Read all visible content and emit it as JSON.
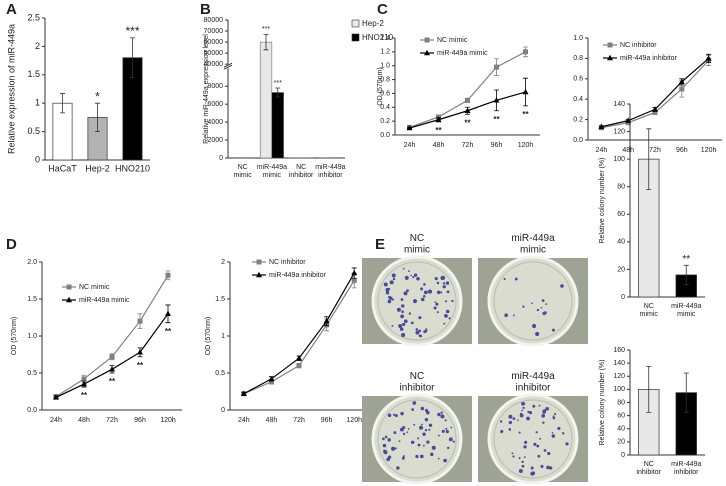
{
  "chart_data": [
    {
      "type": "bar",
      "panel": "A",
      "ylabel": "Relative expression of miR-449a",
      "categories": [
        "HaCaT",
        "Hep-2",
        "HNO210"
      ],
      "values": [
        1.0,
        0.75,
        1.8
      ],
      "errors": [
        0.17,
        0.25,
        0.35
      ],
      "annotations": [
        null,
        "*",
        "***"
      ],
      "colors": [
        "#ffffff",
        "#b3b3b3",
        "#000000"
      ],
      "ylim": [
        0,
        2.5
      ],
      "yticks": [
        0,
        0.5,
        1,
        1.5,
        2,
        2.5
      ]
    },
    {
      "type": "bar",
      "panel": "B",
      "ylabel": "Relative miR-449a expression level",
      "categories": [
        "NC\nmimic",
        "miR-449a\nmimic",
        "NC\ninhibitor",
        "miR-449a\ninhibitor"
      ],
      "series": [
        {
          "name": "Hep-2",
          "color": "#e8e8e8",
          "values": [
            40,
            60000,
            20,
            30
          ],
          "errors": [
            null,
            7000,
            null,
            null
          ],
          "annotations": [
            null,
            "***",
            null,
            null
          ]
        },
        {
          "name": "HNO210",
          "color": "#000000",
          "values": [
            40,
            7300,
            20,
            40
          ],
          "errors": [
            null,
            500,
            null,
            null
          ],
          "annotations": [
            null,
            "***",
            null,
            null
          ]
        }
      ],
      "ylim": [
        0,
        80000
      ],
      "ybreak": [
        10000,
        40000
      ],
      "yticks": [
        0,
        2000,
        4000,
        6000,
        8000,
        40000,
        50000,
        60000,
        70000,
        80000
      ],
      "legend": "right"
    },
    {
      "type": "line",
      "panel": "C",
      "ylabel": "OD (570nm)",
      "categories": [
        "24h",
        "48h",
        "72h",
        "96h",
        "120h"
      ],
      "series": [
        {
          "name": "NC mimic",
          "color": "#808080",
          "marker": "square",
          "values": [
            0.11,
            0.26,
            0.5,
            0.98,
            1.2
          ],
          "errors": [
            0.01,
            0.02,
            0.03,
            0.12,
            0.07
          ]
        },
        {
          "name": "miR-449a mimic",
          "color": "#000000",
          "marker": "triangle",
          "values": [
            0.1,
            0.22,
            0.35,
            0.5,
            0.62
          ],
          "errors": [
            0.01,
            0.03,
            0.05,
            0.15,
            0.2
          ],
          "annotations": [
            null,
            "**",
            "**",
            "**",
            "**"
          ]
        }
      ],
      "ylim": [
        0,
        1.4
      ],
      "yticks": [
        {
          "value": 0,
          "label": "0.0"
        },
        0.2,
        0.4,
        0.6,
        0.8,
        {
          "value": 1,
          "label": "1.0"
        },
        1.2,
        1.4
      ],
      "legend": "upper left"
    },
    {
      "type": "line",
      "categories": [
        "24h",
        "48h",
        "72h",
        "96h",
        "120h"
      ],
      "series": [
        {
          "name": "NC inhibitor",
          "color": "#808080",
          "marker": "square",
          "values": [
            0.12,
            0.17,
            0.27,
            0.5,
            0.78
          ],
          "errors": [
            0.01,
            0.01,
            0.02,
            0.08,
            0.05
          ]
        },
        {
          "name": "miR-449a inhibitor",
          "color": "#000000",
          "marker": "triangle",
          "values": [
            0.13,
            0.19,
            0.3,
            0.57,
            0.8
          ],
          "errors": [
            0.01,
            0.01,
            0.02,
            0.03,
            0.04
          ]
        }
      ],
      "ylim": [
        0,
        1
      ],
      "yticks": [
        {
          "value": 0,
          "label": "0.0"
        },
        0.2,
        0.4,
        0.6,
        0.8,
        {
          "value": 1,
          "label": "1.0"
        }
      ],
      "legend": "upper left"
    },
    {
      "type": "line",
      "panel": "D",
      "ylabel": "OD (570nm)",
      "categories": [
        "24h",
        "48h",
        "72h",
        "96h",
        "120h"
      ],
      "series": [
        {
          "name": "NC mimic",
          "color": "#808080",
          "marker": "square",
          "values": [
            0.18,
            0.42,
            0.72,
            1.2,
            1.82
          ],
          "errors": [
            0.03,
            0.05,
            0.04,
            0.1,
            0.06
          ]
        },
        {
          "name": "miR-449a mimic",
          "color": "#000000",
          "marker": "triangle",
          "values": [
            0.17,
            0.35,
            0.55,
            0.78,
            1.3
          ],
          "errors": [
            0.02,
            0.04,
            0.05,
            0.06,
            0.12
          ],
          "annotations": [
            null,
            "**",
            "**",
            "**",
            "**"
          ]
        }
      ],
      "ylim": [
        0,
        2
      ],
      "yticks": [
        {
          "value": 0,
          "label": "0.0"
        },
        0.5,
        {
          "value": 1,
          "label": "1.0"
        },
        1.5,
        {
          "value": 2,
          "label": "2.0"
        }
      ],
      "legend": "upper left"
    },
    {
      "type": "line",
      "ylabel": "OD (570nm)",
      "categories": [
        "24h",
        "48h",
        "72h",
        "96h",
        "120h"
      ],
      "series": [
        {
          "name": "NC inhibitor",
          "color": "#808080",
          "marker": "square",
          "values": [
            0.22,
            0.38,
            0.6,
            1.15,
            1.75
          ],
          "errors": [
            0.02,
            0.03,
            0.03,
            0.08,
            0.1
          ]
        },
        {
          "name": "miR-449a inhibitor",
          "color": "#000000",
          "marker": "triangle",
          "values": [
            0.22,
            0.42,
            0.7,
            1.2,
            1.85
          ],
          "errors": [
            0.02,
            0.03,
            0.03,
            0.06,
            0.07
          ]
        }
      ],
      "ylim": [
        0,
        2
      ],
      "yticks": [
        0,
        0.5,
        1,
        1.5,
        2
      ],
      "legend": "upper left"
    },
    {
      "type": "bar",
      "panel": "E",
      "ylabel": "Relative colony number (%)",
      "photo_labels": [
        "NC\nmimic",
        "miR-449a\nmimic",
        "NC\ninhibitor",
        "miR-449a\ninhibitor"
      ],
      "categories": [
        "NC\nmimic",
        "miR-449a\nmimic"
      ],
      "values": [
        100,
        16
      ],
      "errors": [
        22,
        7
      ],
      "annotations": [
        null,
        "**"
      ],
      "colors": [
        "#e8e8e8",
        "#000000"
      ],
      "ylim": [
        0,
        140
      ],
      "yticks": [
        0,
        20,
        40,
        60,
        80,
        100,
        120,
        140
      ]
    },
    {
      "type": "bar",
      "ylabel": "Relative colony number (%)",
      "categories": [
        "NC\ninhibitor",
        "miR-449a\ninhibitor"
      ],
      "values": [
        100,
        95
      ],
      "errors": [
        35,
        30
      ],
      "colors": [
        "#e8e8e8",
        "#000000"
      ],
      "ylim": [
        0,
        160
      ],
      "yticks": [
        0,
        20,
        40,
        60,
        80,
        100,
        120,
        140,
        160
      ]
    }
  ]
}
